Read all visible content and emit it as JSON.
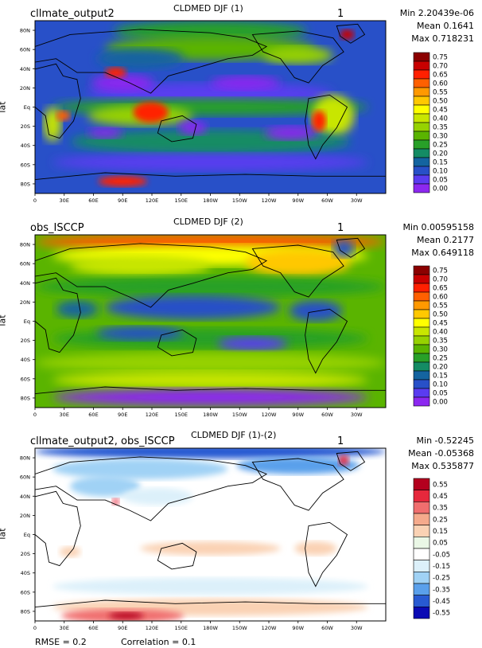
{
  "chart_data": [
    {
      "type": "heatmap",
      "title": "CLDMED DJF (1)",
      "left_label": "cllmate_output2",
      "right_label": "1",
      "stats": [
        "Min 2.20439e-06",
        "Mean 0.1641",
        "Max 0.718231"
      ],
      "ylabel": "lat",
      "x_ticks": [
        "0",
        "30E",
        "60E",
        "90E",
        "120E",
        "150E",
        "180W",
        "150W",
        "120W",
        "90W",
        "60W",
        "30W"
      ],
      "y_ticks": [
        "80N",
        "60N",
        "40N",
        "20N",
        "Eq",
        "20S",
        "40S",
        "60S",
        "80S"
      ],
      "colorbar": {
        "labels": [
          "0.75",
          "0.70",
          "0.65",
          "0.60",
          "0.55",
          "0.50",
          "0.45",
          "0.40",
          "0.35",
          "0.30",
          "0.25",
          "0.20",
          "0.15",
          "0.10",
          "0.05",
          "0.00"
        ],
        "colors": [
          "#8b0000",
          "#c80000",
          "#ff2000",
          "#ff6000",
          "#ff9900",
          "#ffc800",
          "#ffff00",
          "#c8e600",
          "#96d200",
          "#5ab400",
          "#28a028",
          "#148c64",
          "#1464a0",
          "#2850c8",
          "#5a3cf0",
          "#8c28f0"
        ]
      }
    },
    {
      "type": "heatmap",
      "title": "CLDMED DJF (2)",
      "left_label": "obs_ISCCP",
      "right_label": "1",
      "stats": [
        "Min 0.00595158",
        "Mean 0.2177",
        "Max 0.649118"
      ],
      "ylabel": "lat",
      "x_ticks": [
        "0",
        "30E",
        "60E",
        "90E",
        "120E",
        "150E",
        "180W",
        "150W",
        "120W",
        "90W",
        "60W",
        "30W"
      ],
      "y_ticks": [
        "80N",
        "60N",
        "40N",
        "20N",
        "Eq",
        "20S",
        "40S",
        "60S",
        "80S"
      ],
      "colorbar": {
        "labels": [
          "0.75",
          "0.70",
          "0.65",
          "0.60",
          "0.55",
          "0.50",
          "0.45",
          "0.40",
          "0.35",
          "0.30",
          "0.25",
          "0.20",
          "0.15",
          "0.10",
          "0.05",
          "0.00"
        ],
        "colors": [
          "#8b0000",
          "#c80000",
          "#ff2000",
          "#ff6000",
          "#ff9900",
          "#ffc800",
          "#ffff00",
          "#c8e600",
          "#96d200",
          "#5ab400",
          "#28a028",
          "#148c64",
          "#1464a0",
          "#2850c8",
          "#5a3cf0",
          "#8c28f0"
        ]
      }
    },
    {
      "type": "heatmap",
      "title": "CLDMED DJF (1)-(2)",
      "left_label": "cllmate_output2, obs_ISCCP",
      "right_label": "1",
      "stats": [
        "Min -0.52245",
        "Mean -0.05368",
        "Max 0.535877"
      ],
      "ylabel": "lat",
      "x_ticks": [
        "0",
        "30E",
        "60E",
        "90E",
        "120E",
        "150E",
        "180W",
        "150W",
        "120W",
        "90W",
        "60W",
        "30W"
      ],
      "y_ticks": [
        "80N",
        "60N",
        "40N",
        "20N",
        "Eq",
        "20S",
        "40S",
        "60S",
        "80S"
      ],
      "colorbar": {
        "labels": [
          "0.55",
          "0.45",
          "0.35",
          "0.25",
          "0.15",
          "0.05",
          "-0.05",
          "-0.15",
          "-0.25",
          "-0.35",
          "-0.45",
          "-0.55"
        ],
        "colors": [
          "#b4001e",
          "#e6283c",
          "#f06e6e",
          "#f5aa8c",
          "#fad2b4",
          "#eaf7e6",
          "#ffffff",
          "#dcf0fa",
          "#a0d2f5",
          "#5aa0eb",
          "#285ad2",
          "#0a0ab4"
        ]
      }
    }
  ],
  "footer": {
    "rmse": "RMSE = 0.2",
    "correlation": "Correlation = 0.1"
  }
}
